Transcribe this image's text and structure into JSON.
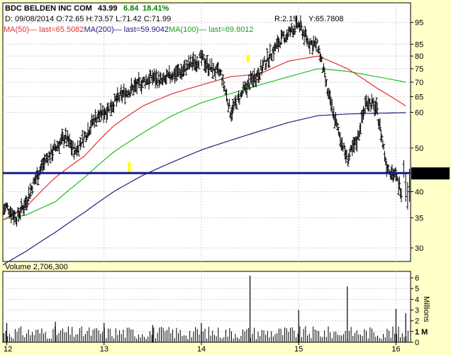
{
  "header": {
    "symbol_line": "BDC BELDEN INC COM",
    "last_price": "43.99",
    "change": "6.84",
    "change_pct": "18.41%",
    "ohlc_line": "D: 09/08/2014 O:72.65 H:73.57 L:71.42 C:71.99",
    "r_readout": "R:2.15",
    "y_readout": "Y:65.7808",
    "ma50_label": "MA(50)",
    "ma50_last": "— last=65.5082",
    "ma200_label": "MA(200)",
    "ma200_last": "— last=59.9042",
    "ma100_label": "MA(100)",
    "ma100_last": "— last=69.8012",
    "volume_label": "Volume 2,706,300"
  },
  "price_axis": {
    "ticks": [
      95,
      85,
      80,
      75,
      70,
      65,
      60,
      50,
      40,
      35,
      30
    ],
    "last_price_tag": "43.99"
  },
  "volume_axis": {
    "ticks": [
      "6",
      "5",
      "4",
      "3",
      "2",
      "1 M",
      "0"
    ],
    "unit_label": "Millions"
  },
  "time_axis": {
    "labels": [
      "12",
      "13",
      "14",
      "15",
      "16"
    ]
  },
  "colors": {
    "background": "#FFFFC8",
    "price_bars": "#000000",
    "ma50": "#E03030",
    "ma100": "#20C020",
    "ma200": "#202080",
    "horizontal_line": "#1A1A8C",
    "change_positive": "#008000",
    "highlight": "#FFFF00"
  },
  "chart_data": {
    "type": "ohlc",
    "title": "BDC BELDEN INC COM",
    "y_scale": "log",
    "ylim": [
      26,
      110
    ],
    "x_labels": [
      "12",
      "13",
      "14",
      "15",
      "16"
    ],
    "horizontal_line": 43.99,
    "series": [
      {
        "name": "Price (close, approx.)",
        "x": [
          2011.9,
          2012.0,
          2012.1,
          2012.2,
          2012.3,
          2012.4,
          2012.5,
          2012.6,
          2012.7,
          2012.8,
          2012.9,
          2013.0,
          2013.1,
          2013.2,
          2013.3,
          2013.4,
          2013.5,
          2013.6,
          2013.7,
          2013.8,
          2013.9,
          2014.0,
          2014.1,
          2014.2,
          2014.3,
          2014.4,
          2014.5,
          2014.6,
          2014.7,
          2014.8,
          2014.9,
          2015.0,
          2015.1,
          2015.2,
          2015.3,
          2015.4,
          2015.5,
          2015.6,
          2015.7,
          2015.8,
          2015.9,
          2016.0,
          2016.1,
          2016.15
        ],
        "y": [
          35.5,
          37,
          35,
          38,
          43,
          47,
          50,
          53,
          49,
          53,
          58,
          60,
          63,
          66,
          68,
          70,
          72,
          70,
          73,
          74,
          77,
          79,
          75,
          73,
          60,
          65,
          70,
          74,
          80,
          86,
          90,
          94,
          86,
          84,
          66,
          55,
          47,
          52,
          64,
          61,
          46,
          43,
          38,
          44
        ]
      },
      {
        "name": "MA(50)",
        "x": [
          2011.9,
          2012.2,
          2012.5,
          2012.8,
          2013.1,
          2013.4,
          2013.7,
          2014.0,
          2014.3,
          2014.6,
          2014.9,
          2015.2,
          2015.5,
          2015.8,
          2016.1,
          2016.15
        ],
        "y": [
          34,
          37,
          43,
          48,
          56,
          62,
          66,
          69,
          72,
          73,
          78,
          80,
          75,
          68,
          62,
          65.5
        ]
      },
      {
        "name": "MA(100)",
        "x": [
          2011.9,
          2012.2,
          2012.5,
          2012.8,
          2013.1,
          2013.4,
          2013.7,
          2014.0,
          2014.3,
          2014.6,
          2014.9,
          2015.2,
          2015.5,
          2015.8,
          2016.1,
          2016.15
        ],
        "y": [
          34.5,
          35.5,
          38,
          43,
          49,
          54,
          59,
          63,
          66,
          69,
          72,
          75,
          74,
          72,
          70,
          69.8
        ]
      },
      {
        "name": "MA(200)",
        "x": [
          2011.9,
          2012.2,
          2012.5,
          2012.8,
          2013.1,
          2013.4,
          2013.7,
          2014.0,
          2014.3,
          2014.6,
          2014.9,
          2015.2,
          2015.5,
          2015.8,
          2016.1,
          2016.15
        ],
        "y": [
          27,
          29.5,
          32.5,
          36,
          40,
          43.5,
          46.5,
          49.5,
          52,
          54.5,
          57,
          59,
          59.5,
          59.7,
          59.9,
          59.9
        ]
      }
    ],
    "volume": {
      "name": "Volume",
      "unit": "Millions",
      "x": [
        2012.0,
        2012.5,
        2013.0,
        2013.5,
        2014.0,
        2014.5,
        2015.0,
        2015.5,
        2016.0,
        2016.1
      ],
      "peaks": [
        1.8,
        1.9,
        1.8,
        1.6,
        1.8,
        6.2,
        3.0,
        5.2,
        3.1,
        2.7
      ]
    }
  }
}
